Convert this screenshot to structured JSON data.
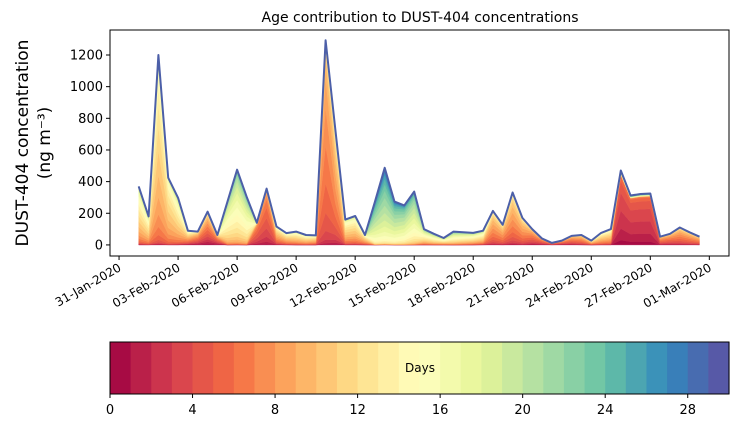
{
  "chart_data": {
    "type": "area",
    "stacked": true,
    "title": "Age contribution to DUST-404 concentrations",
    "ylabel_line1": "DUST-404 concentration",
    "ylabel_line2": "(ng m⁻³)",
    "xlabel": "",
    "x_start": "2020-02-01 00:00",
    "x_step_hours": 12,
    "x_units": "days since 31-Jan-2020",
    "xlim": [
      -0.46,
      31.0
    ],
    "ylim": [
      -70,
      1358
    ],
    "yticks": [
      0,
      200,
      400,
      600,
      800,
      1000,
      1200
    ],
    "xticks": [
      {
        "day": 0,
        "label": "31-Jan-2020"
      },
      {
        "day": 3,
        "label": "03-Feb-2020"
      },
      {
        "day": 6,
        "label": "06-Feb-2020"
      },
      {
        "day": 9,
        "label": "09-Feb-2020"
      },
      {
        "day": 12,
        "label": "12-Feb-2020"
      },
      {
        "day": 15,
        "label": "15-Feb-2020"
      },
      {
        "day": 18,
        "label": "18-Feb-2020"
      },
      {
        "day": 21,
        "label": "21-Feb-2020"
      },
      {
        "day": 24,
        "label": "24-Feb-2020"
      },
      {
        "day": 27,
        "label": "27-Feb-2020"
      },
      {
        "day": 30,
        "label": "01-Mar-2020"
      }
    ],
    "total": [
      370,
      180,
      1200,
      425,
      297,
      90,
      84,
      210,
      63,
      270,
      475,
      300,
      140,
      356,
      116,
      75,
      84,
      63,
      60,
      1293,
      720,
      160,
      183,
      63,
      270,
      487,
      274,
      250,
      337,
      100,
      70,
      44,
      84,
      80,
      76,
      90,
      215,
      127,
      331,
      171,
      100,
      40,
      13,
      27,
      57,
      63,
      27,
      76,
      100,
      470,
      312,
      322,
      325,
      52,
      70,
      110,
      80,
      52
    ],
    "mean_age_days": [
      12,
      12,
      11,
      11,
      12,
      9,
      6,
      6,
      5,
      15,
      16,
      16,
      5,
      5,
      9,
      10,
      11,
      11,
      10,
      7,
      8,
      11,
      11,
      10,
      20,
      21,
      20,
      19,
      18,
      14,
      14,
      13,
      15,
      14,
      13,
      12,
      8,
      8,
      8,
      8,
      6,
      5,
      5,
      5,
      6,
      7,
      9,
      10,
      10,
      3,
      3,
      3,
      3,
      6,
      6,
      7,
      7,
      7
    ],
    "age_sd_days": [
      4,
      4,
      3,
      3,
      4,
      5,
      4,
      4,
      4,
      4,
      4,
      4,
      2,
      2,
      4,
      4,
      4,
      4,
      4,
      2,
      3,
      4,
      4,
      4,
      4,
      4,
      4,
      4,
      4,
      5,
      5,
      5,
      5,
      5,
      5,
      5,
      3,
      3,
      3,
      3,
      3,
      3,
      3,
      3,
      3,
      3,
      4,
      4,
      4,
      1.5,
      1.5,
      1.5,
      1.5,
      3,
      3,
      3,
      3,
      3
    ],
    "age_bins": 30,
    "colorbar": {
      "label": "Days",
      "range": [
        0,
        30
      ],
      "ticks": [
        0,
        4,
        8,
        12,
        16,
        20,
        24,
        28
      ],
      "colors": [
        "#9e0142",
        "#d53e4f",
        "#f46d43",
        "#fdae61",
        "#fee08b",
        "#ffffbf",
        "#e6f598",
        "#abdda4",
        "#66c2a5",
        "#3288bd",
        "#5e4fa2"
      ]
    },
    "total_line_color": "#4c5fa8",
    "grid": false,
    "legend": "colorbar-bottom"
  }
}
